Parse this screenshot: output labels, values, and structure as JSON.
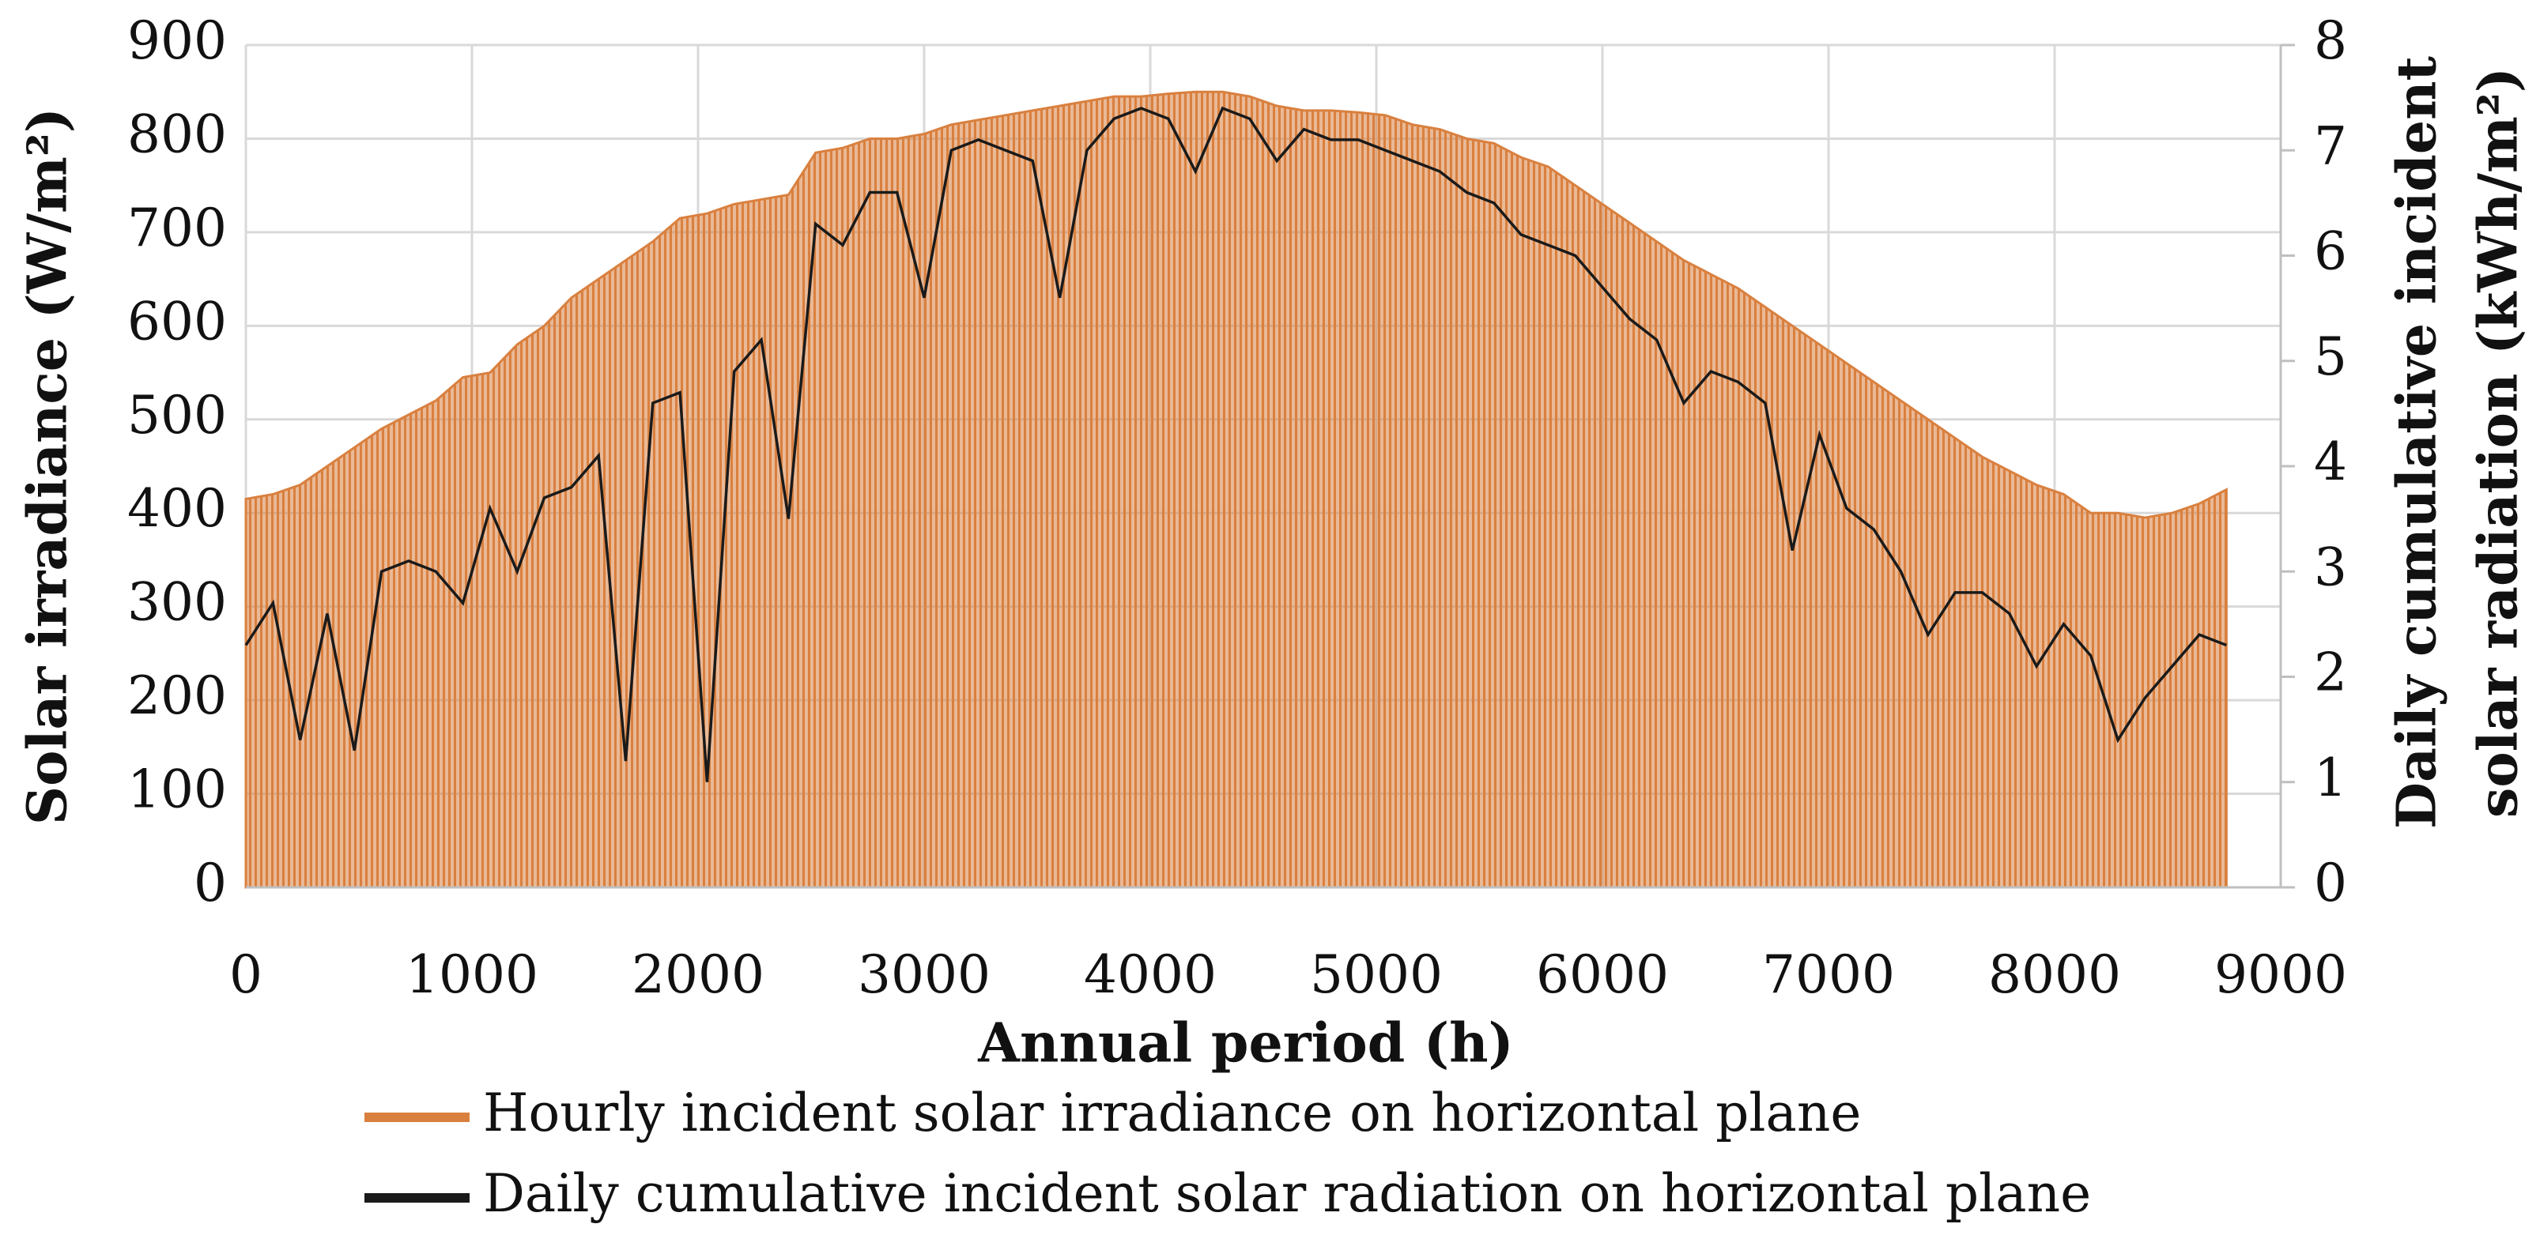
{
  "chart_data": {
    "type": "line",
    "xlabel": "Annual period (h)",
    "ylabel": "Solar irradiance (W/m²)",
    "y2label": [
      "Daily cumulative incident",
      "solar radiation (kWh/m²)"
    ],
    "xlim": [
      0,
      9000
    ],
    "xticks": [
      0,
      1000,
      2000,
      3000,
      4000,
      5000,
      6000,
      7000,
      8000,
      9000
    ],
    "ylim": [
      0,
      900
    ],
    "yticks": [
      0,
      100,
      200,
      300,
      400,
      500,
      600,
      700,
      800,
      900
    ],
    "y2lim": [
      0,
      8
    ],
    "y2ticks": [
      0,
      1,
      2,
      3,
      4,
      5,
      6,
      7,
      8
    ],
    "grid": true,
    "x": [
      0,
      120,
      240,
      360,
      480,
      600,
      720,
      840,
      960,
      1080,
      1200,
      1320,
      1440,
      1560,
      1680,
      1800,
      1920,
      2040,
      2160,
      2280,
      2400,
      2520,
      2640,
      2760,
      2880,
      3000,
      3120,
      3240,
      3360,
      3480,
      3600,
      3720,
      3840,
      3960,
      4080,
      4200,
      4320,
      4440,
      4560,
      4680,
      4800,
      4920,
      5040,
      5160,
      5280,
      5400,
      5520,
      5640,
      5760,
      5880,
      6000,
      6120,
      6240,
      6360,
      6480,
      6600,
      6720,
      6840,
      6960,
      7080,
      7200,
      7320,
      7440,
      7560,
      7680,
      7800,
      7920,
      8040,
      8160,
      8280,
      8400,
      8520,
      8640,
      8760
    ],
    "series": [
      {
        "name": "Hourly incident solar irradiance on horizontal plane",
        "color": "#d9803f",
        "style": "spikes",
        "values": [
          415,
          420,
          430,
          450,
          470,
          490,
          505,
          520,
          545,
          550,
          580,
          600,
          630,
          650,
          670,
          690,
          715,
          720,
          730,
          735,
          740,
          785,
          790,
          800,
          800,
          805,
          815,
          820,
          825,
          830,
          835,
          840,
          845,
          845,
          848,
          850,
          850,
          845,
          835,
          830,
          830,
          828,
          825,
          815,
          810,
          800,
          795,
          780,
          770,
          750,
          730,
          710,
          690,
          670,
          655,
          640,
          620,
          600,
          580,
          560,
          540,
          520,
          500,
          480,
          460,
          445,
          430,
          420,
          400,
          400,
          395,
          400,
          410,
          425
        ]
      },
      {
        "name": "Daily cumulative incident solar radiation on horizontal plane",
        "color": "#1a1a1a",
        "axis": "y2",
        "values": [
          2.3,
          2.7,
          1.4,
          2.6,
          1.3,
          3.0,
          3.1,
          3.0,
          2.7,
          3.6,
          3.0,
          3.7,
          3.8,
          4.1,
          1.2,
          4.6,
          4.7,
          1.0,
          4.9,
          5.2,
          3.5,
          6.3,
          6.1,
          6.6,
          6.6,
          5.6,
          7.0,
          7.1,
          7.0,
          6.9,
          5.6,
          7.0,
          7.3,
          7.4,
          7.3,
          6.8,
          7.4,
          7.3,
          6.9,
          7.2,
          7.1,
          7.1,
          7.0,
          6.9,
          6.8,
          6.6,
          6.5,
          6.2,
          6.1,
          6.0,
          5.7,
          5.4,
          5.2,
          4.6,
          4.9,
          4.8,
          4.6,
          3.2,
          4.3,
          3.6,
          3.4,
          3.0,
          2.4,
          2.8,
          2.8,
          2.6,
          2.1,
          2.5,
          2.2,
          1.4,
          1.8,
          2.1,
          2.4,
          2.3
        ]
      }
    ]
  }
}
